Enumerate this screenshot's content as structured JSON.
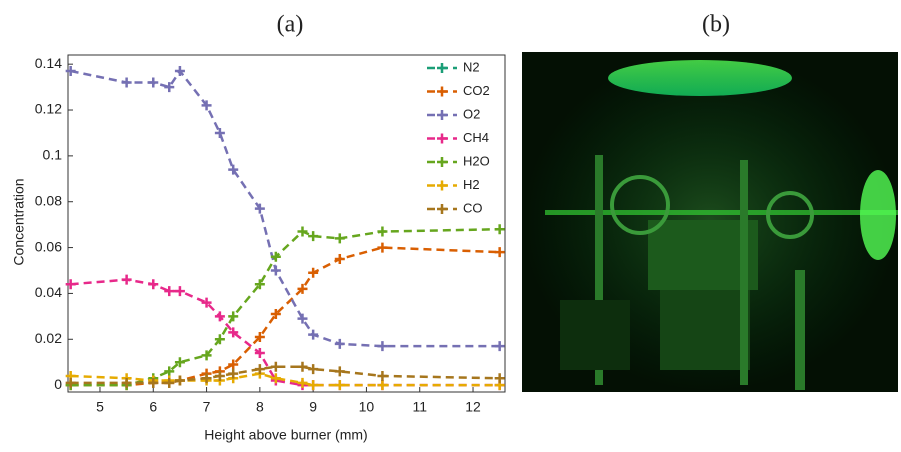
{
  "chart_data": {
    "type": "line",
    "title": "(a)",
    "x_label": "Height above burner (mm)",
    "y_label": "Concentration",
    "x": [
      4.45,
      5.5,
      6.0,
      6.3,
      6.5,
      7.0,
      7.25,
      7.5,
      8.0,
      8.3,
      8.8,
      9.0,
      9.5,
      10.3,
      12.5
    ],
    "xlim": [
      4.4,
      12.6
    ],
    "xticks": [
      5,
      6,
      7,
      8,
      9,
      10,
      11,
      12
    ],
    "ylim": [
      -0.003,
      0.144
    ],
    "yticks": [
      0,
      0.02,
      0.04,
      0.06,
      0.08,
      0.1,
      0.12,
      0.14
    ],
    "legend": "upper right",
    "series": [
      {
        "name": "N2",
        "color": "#1b9e77",
        "values": [
          null,
          null,
          null,
          null,
          null,
          null,
          null,
          null,
          null,
          null,
          null,
          null,
          null,
          null,
          null
        ]
      },
      {
        "name": "CO2",
        "color": "#d95f02",
        "values": [
          0,
          0,
          0.001,
          0.001,
          0.002,
          0.005,
          0.006,
          0.009,
          0.021,
          0.031,
          0.042,
          0.049,
          0.055,
          0.06,
          0.058
        ]
      },
      {
        "name": "O2",
        "color": "#7570b3",
        "values": [
          0.137,
          0.132,
          0.132,
          0.13,
          0.137,
          0.122,
          0.11,
          0.094,
          0.077,
          0.05,
          0.029,
          0.022,
          0.018,
          0.017,
          0.017
        ]
      },
      {
        "name": "CH4",
        "color": "#e7298a",
        "values": [
          0.044,
          0.046,
          0.044,
          0.041,
          0.041,
          0.036,
          0.03,
          0.023,
          0.014,
          0.002,
          0,
          0,
          0,
          0,
          0
        ]
      },
      {
        "name": "H2O",
        "color": "#66a61e",
        "values": [
          0,
          0,
          0.003,
          0.006,
          0.01,
          0.013,
          0.02,
          0.03,
          0.044,
          0.056,
          0.067,
          0.065,
          0.064,
          0.067,
          0.068
        ]
      },
      {
        "name": "H2",
        "color": "#e6ab02",
        "values": [
          0.004,
          0.003,
          0.002,
          0.002,
          0.002,
          0.002,
          0.002,
          0.003,
          0.005,
          0.003,
          0.001,
          0,
          0,
          0,
          0
        ]
      },
      {
        "name": "CO",
        "color": "#a6761d",
        "values": [
          0.001,
          0.001,
          0.001,
          0.001,
          0.002,
          0.003,
          0.004,
          0.005,
          0.007,
          0.008,
          0.008,
          0.007,
          0.006,
          0.004,
          0.003
        ]
      }
    ]
  },
  "image_panel": {
    "label": "(b)"
  }
}
